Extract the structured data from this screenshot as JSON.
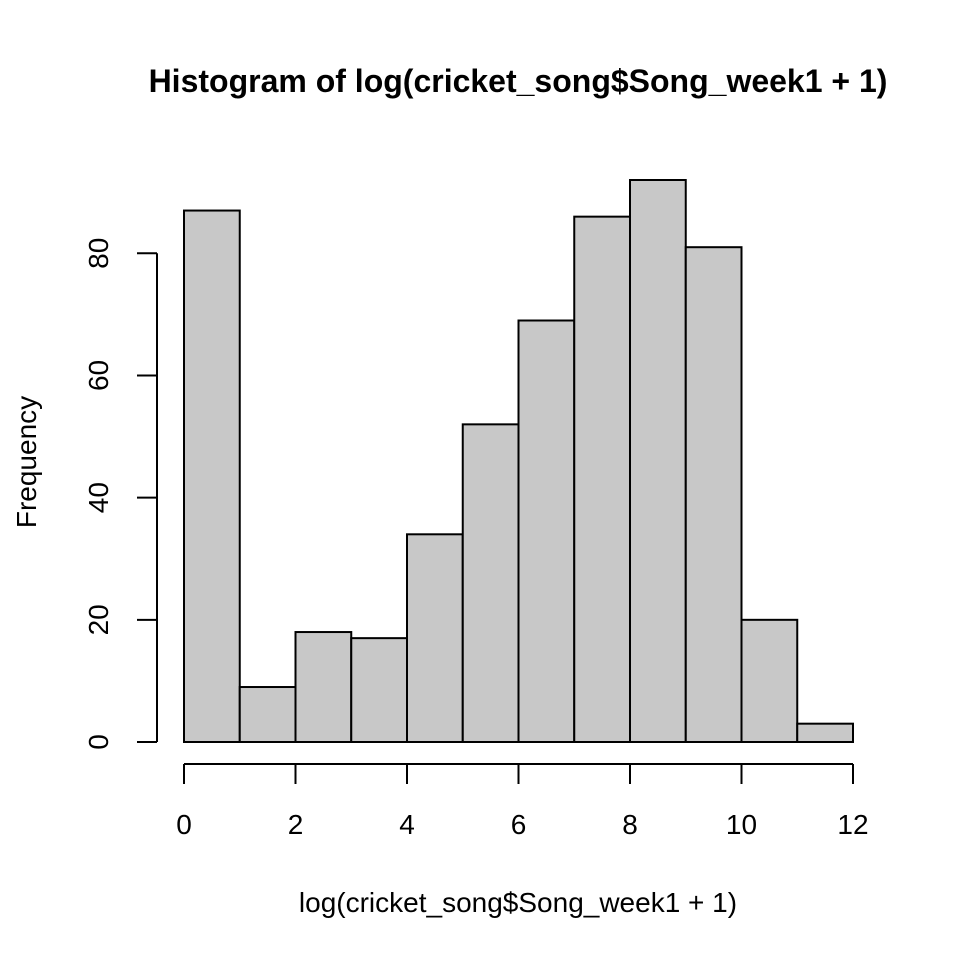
{
  "chart_data": {
    "type": "bar",
    "title": "Histogram of log(cricket_song$Song_week1 + 1)",
    "xlabel": "log(cricket_song$Song_week1 + 1)",
    "ylabel": "Frequency",
    "bin_edges": [
      0,
      1,
      2,
      3,
      4,
      5,
      6,
      7,
      8,
      9,
      10,
      11,
      12
    ],
    "values": [
      87,
      9,
      18,
      17,
      34,
      52,
      69,
      86,
      92,
      81,
      20,
      3
    ],
    "xlim": [
      0,
      12
    ],
    "ylim": [
      0,
      92
    ],
    "x_ticks": [
      0,
      2,
      4,
      6,
      8,
      10,
      12
    ],
    "y_ticks": [
      0,
      20,
      40,
      60,
      80
    ],
    "bar_fill": "#c8c8c8",
    "bar_stroke": "#000000",
    "grid": false
  }
}
